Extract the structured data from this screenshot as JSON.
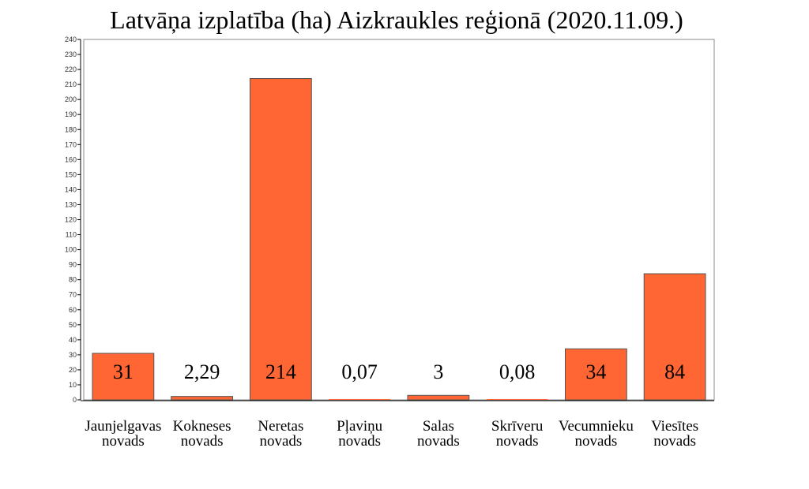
{
  "chart_data": {
    "type": "bar",
    "title": "Latvāņa izplatība (ha) Aizkraukles reģionā (2020.11.09.)",
    "xlabel": "",
    "ylabel": "",
    "ylim": [
      0,
      240
    ],
    "yticks": [
      0,
      10,
      20,
      30,
      40,
      50,
      60,
      70,
      80,
      90,
      100,
      110,
      120,
      130,
      140,
      150,
      160,
      170,
      180,
      190,
      200,
      210,
      220,
      230,
      240
    ],
    "grid": false,
    "legend": "none",
    "categories": [
      [
        "Jaunjelgavas",
        "novads"
      ],
      [
        "Kokneses",
        "novads"
      ],
      [
        "Neretas",
        "novads"
      ],
      [
        "Pļaviņu",
        "novads"
      ],
      [
        "Salas",
        "novads"
      ],
      [
        "Skrīveru",
        "novads"
      ],
      [
        "Vecumnieku",
        "novads"
      ],
      [
        "Viesītes",
        "novads"
      ]
    ],
    "values": [
      31,
      2.29,
      214,
      0.07,
      3,
      0.08,
      34,
      84
    ],
    "data_labels": [
      "31",
      "2,29",
      "214",
      "0,07",
      "3",
      "0,08",
      "34",
      "84"
    ],
    "colors": {
      "bar_fill": "#ff6633",
      "bar_stroke": "#555555",
      "axis": "#888888",
      "text": "#000000"
    }
  }
}
